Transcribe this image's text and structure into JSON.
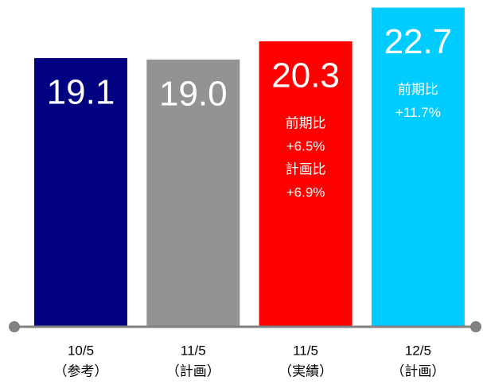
{
  "chart_data": {
    "type": "bar",
    "categories": [
      "10/5",
      "11/5",
      "11/5",
      "12/5"
    ],
    "sublabels": [
      "（参考）",
      "（計画）",
      "（実績）",
      "（計画）"
    ],
    "values": [
      19.1,
      19.0,
      20.3,
      22.7
    ],
    "value_labels": [
      "19.1",
      "19.0",
      "20.3",
      "22.7"
    ],
    "colors": [
      "#000080",
      "#939393",
      "#ff0000",
      "#00ccff"
    ],
    "annotations": [
      [],
      [],
      [
        "前期比",
        "+6.5%",
        "計画比",
        "+6.9%"
      ],
      [
        "前期比",
        "+11.7%"
      ]
    ]
  }
}
